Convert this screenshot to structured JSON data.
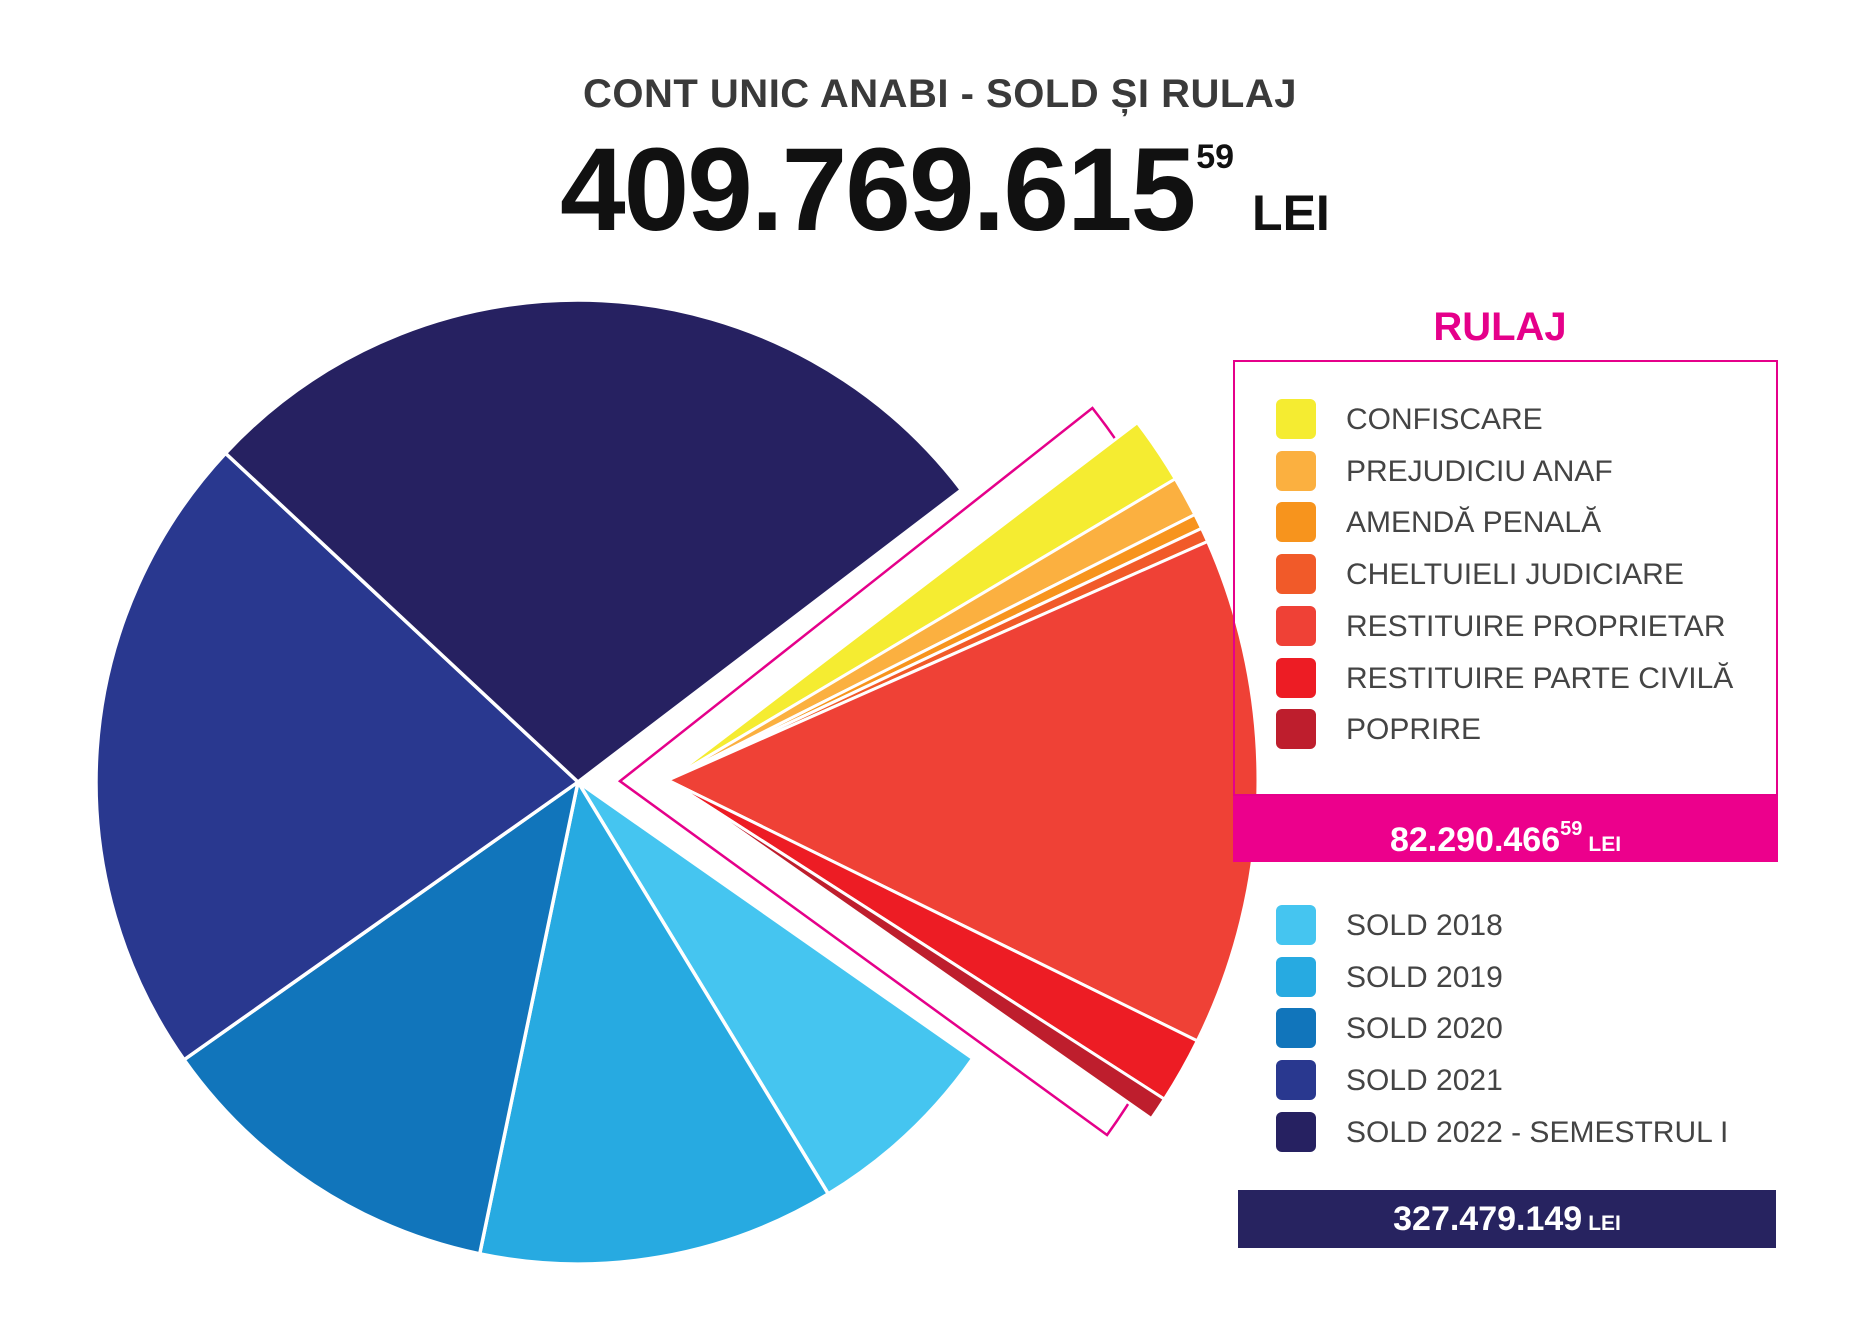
{
  "title": "CONT UNIC ANABI - SOLD ȘI RULAJ",
  "total": {
    "value": "409.769.615",
    "decimals": "59",
    "currency": "LEI"
  },
  "rulaj": {
    "heading": "RULAJ",
    "total": {
      "value": "82.290.466",
      "decimals": "59",
      "currency": "LEI"
    }
  },
  "sold": {
    "total": {
      "value": "327.479.149",
      "currency": "LEI"
    }
  },
  "chart_data": {
    "type": "pie",
    "title": "CONT UNIC ANABI - SOLD ȘI RULAJ",
    "unit": "lei (estimated from slice angles)",
    "slices": [
      {
        "name": "CONFISCARE",
        "group": "RULAJ",
        "color": "#f5ec31",
        "value": 7500000
      },
      {
        "name": "PREJUDICIU ANAF",
        "group": "RULAJ",
        "color": "#fbb040",
        "value": 4500000
      },
      {
        "name": "AMENDĂ PENALĂ",
        "group": "RULAJ",
        "color": "#f7941d",
        "value": 1700000
      },
      {
        "name": "CHELTUIELI JUDICIARE",
        "group": "RULAJ",
        "color": "#f15a29",
        "value": 1600000
      },
      {
        "name": "RESTITUIRE PROPRIETAR",
        "group": "RULAJ",
        "color": "#ef4136",
        "value": 57000000
      },
      {
        "name": "RESTITUIRE PARTE CIVILĂ",
        "group": "RULAJ",
        "color": "#ed1c24",
        "value": 7400000
      },
      {
        "name": "POPRIRE",
        "group": "RULAJ",
        "color": "#be1e2d",
        "value": 2590467
      },
      {
        "name": "SOLD 2018",
        "group": "SOLD",
        "color": "#45c5f0",
        "value": 27000000
      },
      {
        "name": "SOLD 2019",
        "group": "SOLD",
        "color": "#27aae1",
        "value": 49000000
      },
      {
        "name": "SOLD 2020",
        "group": "SOLD",
        "color": "#1175bb",
        "value": 49000000
      },
      {
        "name": "SOLD 2021",
        "group": "SOLD",
        "color": "#29388f",
        "value": 89000000
      },
      {
        "name": "SOLD 2022 - SEMESTRUL I",
        "group": "SOLD",
        "color": "#262161",
        "value": 113479149
      }
    ]
  }
}
